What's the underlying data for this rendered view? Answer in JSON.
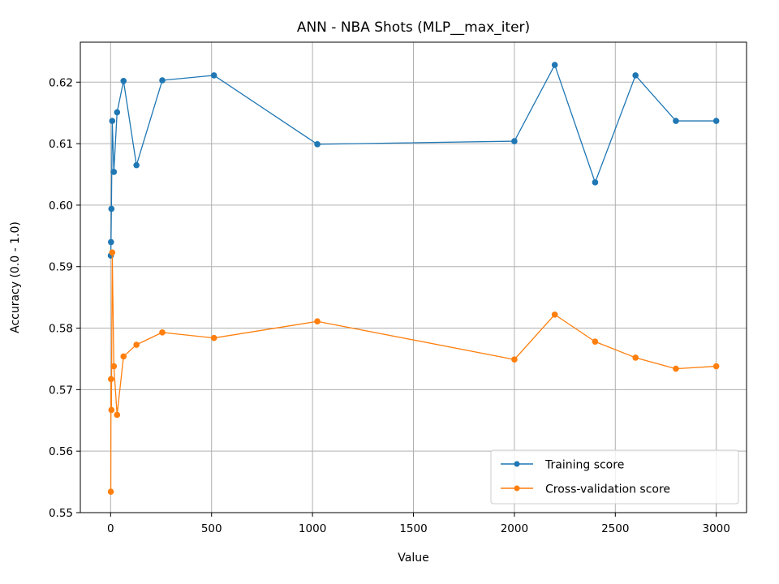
{
  "chart_data": {
    "type": "line",
    "title": "ANN - NBA Shots (MLP__max_iter)",
    "xlabel": "Value",
    "ylabel": "Accuracy (0.0 - 1.0)",
    "xlim": [
      -150,
      3150
    ],
    "ylim": [
      0.55,
      0.6265
    ],
    "xticks": [
      0,
      500,
      1000,
      1500,
      2000,
      2500,
      3000
    ],
    "xtick_labels": [
      "0",
      "500",
      "1000",
      "1500",
      "2000",
      "2500",
      "3000"
    ],
    "yticks": [
      0.55,
      0.56,
      0.57,
      0.58,
      0.59,
      0.6,
      0.61,
      0.62
    ],
    "ytick_labels": [
      "0.55",
      "0.56",
      "0.57",
      "0.58",
      "0.59",
      "0.60",
      "0.61",
      "0.62"
    ],
    "grid": true,
    "legend_position": "lower-right",
    "x": [
      1,
      2,
      4,
      8,
      16,
      32,
      64,
      128,
      256,
      512,
      1024,
      2000,
      2200,
      2400,
      2600,
      2800,
      3000
    ],
    "series": [
      {
        "name": "Training score",
        "color": "#1f77b4",
        "values": [
          0.5918,
          0.594,
          0.5994,
          0.6137,
          0.6054,
          0.6151,
          0.6202,
          0.6065,
          0.6203,
          0.6211,
          0.6099,
          0.6104,
          0.6228,
          0.6037,
          0.6211,
          0.6137,
          0.6137
        ]
      },
      {
        "name": "Cross-validation score",
        "color": "#ff7f0e",
        "values": [
          0.5534,
          0.5717,
          0.5667,
          0.5923,
          0.5738,
          0.5659,
          0.5754,
          0.5773,
          0.5793,
          0.5784,
          0.5811,
          0.5749,
          0.5822,
          0.5778,
          0.5752,
          0.5734,
          0.5738
        ]
      }
    ]
  }
}
